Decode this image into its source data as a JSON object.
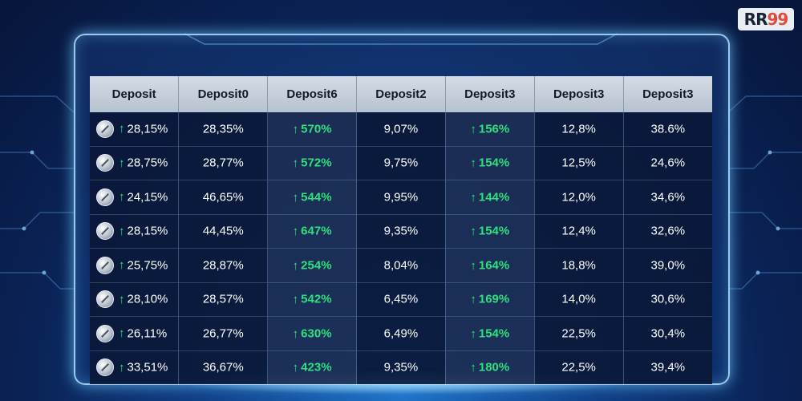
{
  "logo": {
    "text_main": "RR",
    "text_accent": "99"
  },
  "colors": {
    "up": "#2ee07c",
    "header_bg": "#c8d1dc",
    "cell_bg": "#0a1837",
    "frame_glow": "#8fd4ff"
  },
  "table": {
    "headers": [
      "Deposit",
      "Deposit0",
      "Deposit6",
      "Deposit2",
      "Deposit3",
      "Deposit3",
      "Deposit3"
    ],
    "first_col_icon": "coin-icon",
    "up_arrow_icon": "arrow-up-icon",
    "rows": [
      [
        "28,15%",
        "28,35%",
        "570%",
        "9,07%",
        "156%",
        "12,8%",
        "38.6%"
      ],
      [
        "28,75%",
        "28,77%",
        "572%",
        "9,75%",
        "154%",
        "12,5%",
        "24,6%"
      ],
      [
        "24,15%",
        "46,65%",
        "544%",
        "9,95%",
        "144%",
        "12,0%",
        "34,6%"
      ],
      [
        "28,15%",
        "44,45%",
        "647%",
        "9,35%",
        "154%",
        "12,4%",
        "32,6%"
      ],
      [
        "25,75%",
        "28,87%",
        "254%",
        "8,04%",
        "164%",
        "18,8%",
        "39,0%"
      ],
      [
        "28,10%",
        "28,57%",
        "542%",
        "6,45%",
        "169%",
        "14,0%",
        "30,6%"
      ],
      [
        "26,11%",
        "26,77%",
        "630%",
        "6,49%",
        "154%",
        "22,5%",
        "30,4%"
      ],
      [
        "33,51%",
        "36,67%",
        "423%",
        "9,35%",
        "180%",
        "22,5%",
        "39,4%"
      ]
    ]
  }
}
